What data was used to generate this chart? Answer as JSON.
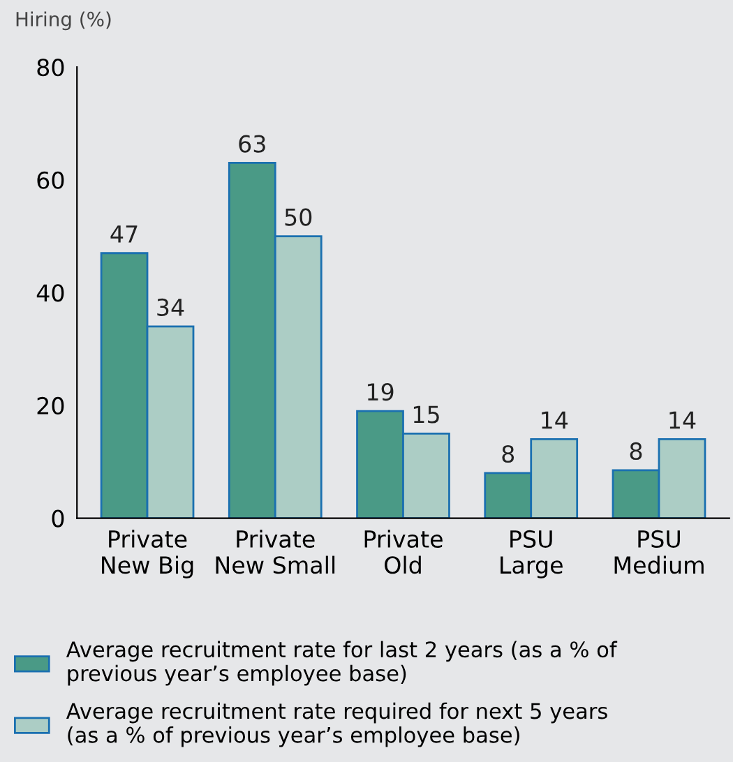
{
  "chart_data": {
    "type": "bar",
    "ylabel": "Hiring (%)",
    "categories": [
      "Private\nNew Big",
      "Private\nNew Small",
      "Private\nOld",
      "PSU\nLarge",
      "PSU\nMedium"
    ],
    "series": [
      {
        "name": "Average recruitment rate for last 2 years (as a % of\nprevious year’s employee base)",
        "color": "#4a9a86",
        "values": [
          47,
          63,
          19,
          8,
          8.5
        ]
      },
      {
        "name": "Average recruitment rate required for next 5 years\n(as a % of previous year’s employee base)",
        "color": "#accdc5",
        "values": [
          34,
          50,
          15,
          14,
          14
        ]
      }
    ],
    "value_labels": [
      [
        "47",
        "63",
        "19",
        "8",
        "8"
      ],
      [
        "34",
        "50",
        "15",
        "14",
        "14"
      ]
    ],
    "ylim": [
      0,
      80
    ],
    "yticks": [
      0,
      20,
      40,
      60,
      80
    ],
    "grid": false,
    "legend": "bottom"
  }
}
